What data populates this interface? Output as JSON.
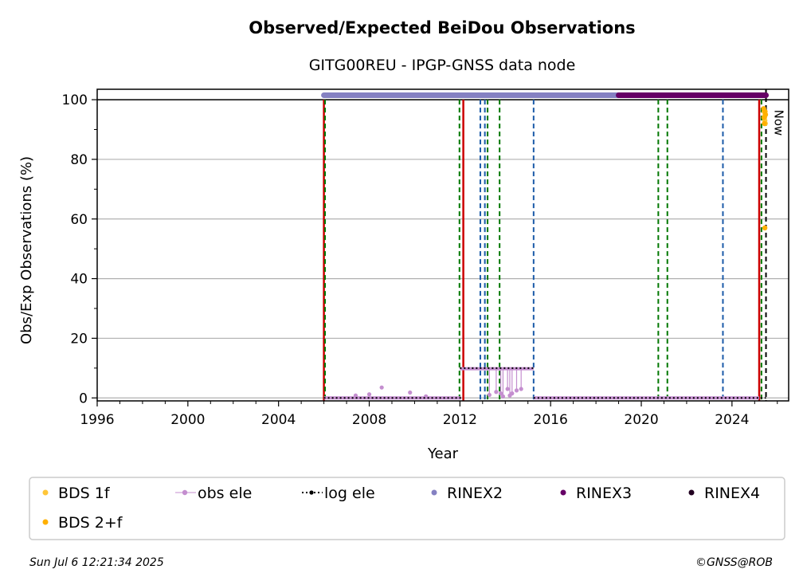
{
  "chart_data": {
    "type": "scatter",
    "title": "Observed/Expected BeiDou Observations",
    "subtitle": "GITG00REU - IPGP-GNSS data node",
    "xlabel": "Year",
    "ylabel": "Obs/Exp Observations (%)",
    "xlim": [
      1996,
      2026.5
    ],
    "ylim": [
      -1,
      103.5
    ],
    "x_ticks": [
      "1996",
      "2000",
      "2004",
      "2008",
      "2012",
      "2016",
      "2020",
      "2024"
    ],
    "x_tick_values": [
      1996,
      2000,
      2004,
      2008,
      2012,
      2016,
      2020,
      2024
    ],
    "y_ticks": [
      "0",
      "20",
      "40",
      "60",
      "80",
      "100"
    ],
    "y_tick_values": [
      0,
      20,
      40,
      60,
      80,
      100
    ],
    "grid": "horizontal",
    "reference_line_y": 100,
    "now_label": "Now",
    "now_x": 2025.5,
    "red_lines_x": [
      2006.0,
      2012.15,
      2025.2
    ],
    "green_lines_x": [
      2006.05,
      2011.98,
      2013.22,
      2013.75,
      2020.75,
      2021.15,
      2025.3
    ],
    "blue_lines_x": [
      2012.9,
      2013.1,
      2015.25,
      2023.6
    ],
    "series": [
      {
        "name": "BDS 1f",
        "color": "#ffc638",
        "points": [
          [
            2025.42,
            96
          ],
          [
            2025.44,
            94
          ],
          [
            2025.45,
            93
          ],
          [
            2025.46,
            95
          ],
          [
            2025.47,
            92
          ]
        ]
      },
      {
        "name": "BDS 2+f",
        "color": "#ffb000",
        "points": [
          [
            2025.4,
            97
          ],
          [
            2025.41,
            94
          ],
          [
            2025.43,
            92
          ],
          [
            2025.45,
            57
          ],
          [
            2025.46,
            96
          ],
          [
            2025.48,
            95
          ]
        ]
      },
      {
        "name": "obs ele",
        "color": "#c48ecf",
        "segments": [
          [
            [
              2006.0,
              0
            ],
            [
              2012.05,
              0
            ]
          ],
          [
            [
              2012.0,
              9.8
            ],
            [
              2015.25,
              9.8
            ]
          ],
          [
            [
              2015.25,
              0
            ],
            [
              2025.2,
              0
            ]
          ]
        ],
        "points": [
          [
            2007.4,
            0.8
          ],
          [
            2008.0,
            1.2
          ],
          [
            2008.55,
            3.5
          ],
          [
            2009.8,
            1.8
          ],
          [
            2010.5,
            0.5
          ],
          [
            2013.3,
            1
          ],
          [
            2013.6,
            2
          ],
          [
            2013.9,
            0.5
          ],
          [
            2014.1,
            3
          ],
          [
            2014.3,
            1.5
          ],
          [
            2014.5,
            2.5
          ],
          [
            2014.7,
            3
          ],
          [
            2013.8,
            1.5
          ],
          [
            2014.2,
            0.8
          ]
        ]
      },
      {
        "name": "log ele",
        "color": "#000000",
        "segments": [
          [
            [
              2006.0,
              0
            ],
            [
              2012.05,
              0
            ]
          ],
          [
            [
              2012.0,
              10
            ],
            [
              2015.25,
              10
            ]
          ],
          [
            [
              2015.25,
              0
            ],
            [
              2025.5,
              0
            ]
          ]
        ]
      },
      {
        "name": "RINEX2",
        "color": "#8581c2",
        "range": [
          2006.0,
          2019.0
        ],
        "y": 101.5
      },
      {
        "name": "RINEX3",
        "color": "#660066",
        "range": [
          2019.0,
          2025.5
        ],
        "y": 101.5
      },
      {
        "name": "RINEX4",
        "color": "#220020",
        "range": [],
        "y": 101.5
      }
    ]
  },
  "footer": {
    "timestamp": "Sun Jul  6 12:21:34 2025",
    "credit": "©GNSS@ROB"
  }
}
